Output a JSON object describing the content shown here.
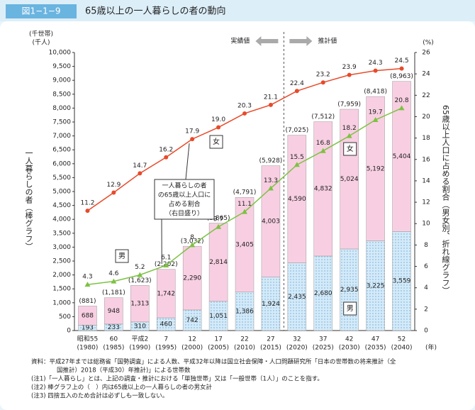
{
  "chart_data": {
    "type": "stacked_bar_line",
    "figure_label": "図1−1−9",
    "title": "65歳以上の一人暮らしの者の動向",
    "y_units": [
      "(千世帯)",
      "(千人)"
    ],
    "y_label": "一人暮らしの者（棒グラフ）",
    "y2_unit": "(%)",
    "y2_label": "65歳以上人口に占める割合（男女別、折れ線グラフ）",
    "x_unit": "(年)",
    "period_labels": [
      "実績値",
      "推計値"
    ],
    "callout": [
      "一人暮らしの者",
      "の65歳以上人口に",
      "占める割合",
      "（右目盛り）"
    ],
    "categories": [
      "昭和55",
      "60",
      "平成2",
      "7",
      "12",
      "17",
      "22",
      "27",
      "32",
      "37",
      "42",
      "47",
      "52"
    ],
    "category_years": [
      "(1980)",
      "(1985)",
      "(1990)",
      "(1995)",
      "(2000)",
      "(2005)",
      "(2010)",
      "(2015)",
      "(2020)",
      "(2025)",
      "(2030)",
      "(2035)",
      "(2040)"
    ],
    "ylim": [
      0,
      10000
    ],
    "yticks": [
      0,
      500,
      {
        "value": 1000,
        "label": "1,000"
      },
      {
        "value": 1500,
        "label": "1,500"
      },
      {
        "value": 2000,
        "label": "2,000"
      },
      {
        "value": 2500,
        "label": "2,500"
      },
      {
        "value": 3000,
        "label": "3,000"
      },
      {
        "value": 3500,
        "label": "3,500"
      },
      {
        "value": 4000,
        "label": "4,000"
      },
      {
        "value": 4500,
        "label": "4,500"
      },
      {
        "value": 5000,
        "label": "5,000"
      },
      {
        "value": 5500,
        "label": "5,500"
      },
      {
        "value": 6000,
        "label": "6,000"
      },
      {
        "value": 6500,
        "label": "6,500"
      },
      {
        "value": 7000,
        "label": "7,000"
      },
      {
        "value": 7500,
        "label": "7,500"
      },
      {
        "value": 8000,
        "label": "8,000"
      },
      {
        "value": 8500,
        "label": "8,500"
      },
      {
        "value": 9000,
        "label": "9,000"
      },
      {
        "value": 9500,
        "label": "9,500"
      },
      {
        "value": 10000,
        "label": "10,000"
      }
    ],
    "y2lim": [
      0,
      26
    ],
    "y2ticks": [
      0,
      2,
      4,
      6,
      8,
      10,
      12,
      14,
      16,
      18,
      20,
      22,
      24,
      26
    ],
    "series": [
      {
        "name": "男",
        "type": "bar",
        "color": "#cfe6f7",
        "values": [
          193,
          233,
          310,
          460,
          742,
          1051,
          1386,
          1924,
          2435,
          2680,
          2935,
          3225,
          3559
        ],
        "value_labels": [
          "193",
          "233",
          "310",
          "460",
          "742",
          "1,051",
          "1,386",
          "1,924",
          "2,435",
          "2,680",
          "2,935",
          "3,225",
          "3,559"
        ]
      },
      {
        "name": "女",
        "type": "bar",
        "color": "#f8cfe2",
        "values": [
          688,
          948,
          1313,
          1742,
          2290,
          2814,
          3405,
          4003,
          4590,
          4832,
          5024,
          5192,
          5404
        ],
        "value_labels": [
          "688",
          "948",
          "1,313",
          "1,742",
          "2,290",
          "2,814",
          "3,405",
          "4,003",
          "4,590",
          "4,832",
          "5,024",
          "5,192",
          "5,404"
        ]
      },
      {
        "name": "女",
        "type": "line",
        "axis": "y2",
        "color": "#e84a2a",
        "marker": "circle",
        "values": [
          11.2,
          12.9,
          14.7,
          16.2,
          17.9,
          19.0,
          20.3,
          21.1,
          22.4,
          23.2,
          23.9,
          24.3,
          24.5
        ],
        "value_labels": [
          "11.2",
          "12.9",
          "14.7",
          "16.2",
          "17.9",
          "19.0",
          "20.3",
          "21.1",
          "22.4",
          "23.2",
          "23.9",
          "24.3",
          "24.5"
        ]
      },
      {
        "name": "男",
        "type": "line",
        "axis": "y2",
        "color": "#7cc242",
        "marker": "triangle",
        "values": [
          4.3,
          4.6,
          5.2,
          6.1,
          8.0,
          9.7,
          11.1,
          13.3,
          15.5,
          16.8,
          18.2,
          19.7,
          20.8
        ]
      }
    ],
    "totals": {
      "values": [
        881,
        1181,
        1623,
        2202,
        3032,
        3865,
        4791,
        5928,
        7025,
        7512,
        7959,
        8418,
        8963
      ],
      "value_labels": [
        "(881)",
        "(1,181)",
        "(1,623)",
        "(2,202)",
        "(3,032)",
        "(3,865)",
        "(4,791)",
        "(5,928)",
        "(7,025)",
        "(7,512)",
        "(7,959)",
        "(8,418)",
        "(8,963)"
      ]
    }
  },
  "notes": [
    "資料：平成27年までは総務省「国勢調査」による人数、平成32年以降は国立社会保障・人口問題研究所「日本の世帯数の将来推計（全",
    "国推計）2018（平成30）年推計)」による世帯数",
    "(注1)「一人暮らし」とは、上記の調査・推計における「単独世帯」又は「一般世帯（1人）」のことを指す。",
    "(注2) 棒グラフ上の（　）内は65歳以上の一人暮らしの者の男女計",
    "(注3) 四捨五入のため合計は必ずしも一致しない。"
  ]
}
